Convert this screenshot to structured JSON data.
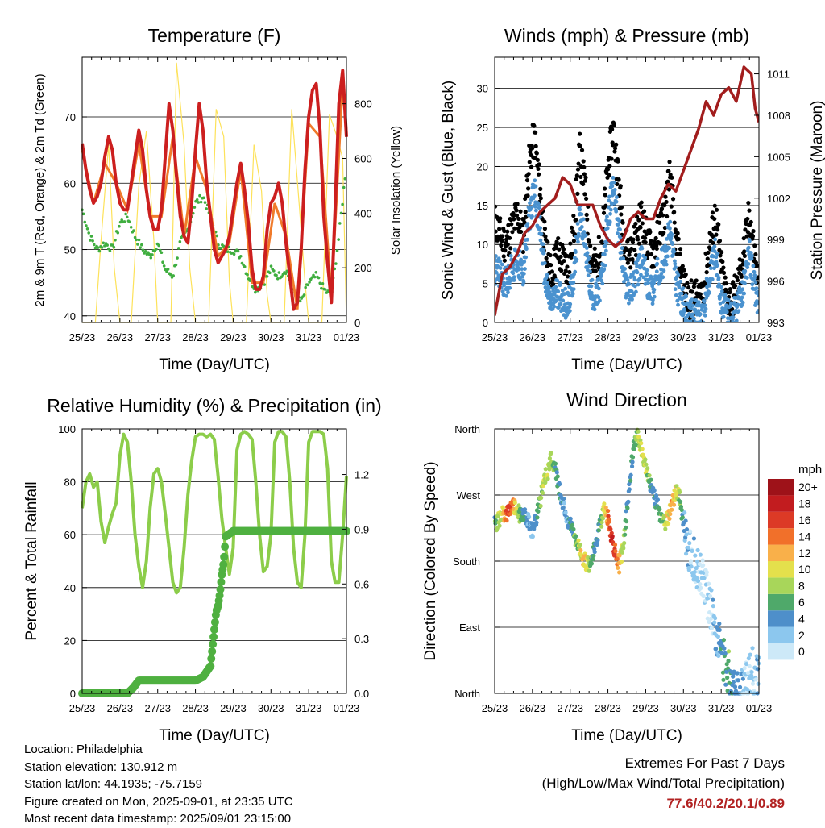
{
  "info": {
    "location": "Location: Philadelphia",
    "elevation": "Station elevation: 130.912 m",
    "latlon": "Station lat/lon: 44.1935; -75.7159",
    "created": "Figure created on Mon, 2025-09-01, at 23:35 UTC",
    "timestamp": "Most recent data timestamp: 2025/09/01 23:15:00"
  },
  "extremes": {
    "title": "Extremes For Past 7 Days",
    "subtitle": "(High/Low/Max Wind/Total Precipitation)",
    "values": "77.6/40.2/20.1/0.89"
  },
  "colors": {
    "temp2m": "#cc1f1f",
    "temp9m": "#f07a2a",
    "dewpoint": "#3fae3f",
    "insolation": "#fde25a",
    "wind": "#4a92cf",
    "gust": "#000000",
    "pressure": "#a21d1d",
    "rh": "#8ccd4a",
    "precip": "#4fb040"
  },
  "speed_scale": {
    "unit": "mph",
    "labels": [
      "0",
      "2",
      "4",
      "6",
      "8",
      "10",
      "12",
      "14",
      "16",
      "18",
      "20+"
    ],
    "colors": [
      "#cde9f8",
      "#8cc7ee",
      "#4e8fca",
      "#4fa96a",
      "#a8d65a",
      "#e4e04c",
      "#f9b04a",
      "#f1702a",
      "#dc3a26",
      "#c21c1f",
      "#9e1219"
    ]
  },
  "chart_data": [
    {
      "id": "temperature",
      "type": "line",
      "title": "Temperature (F)",
      "xlabel": "Time (Day/UTC)",
      "ylabel": "2m & 9m T (Red, Orange) & 2m Td (Green)",
      "y2label": "Solar Insolation (Yellow)",
      "xticks": [
        "25/23",
        "26/23",
        "27/23",
        "28/23",
        "29/23",
        "30/23",
        "31/23",
        "01/23"
      ],
      "xlim": [
        0,
        7
      ],
      "ylim": [
        39,
        79
      ],
      "yticks": [
        40,
        50,
        60,
        70
      ],
      "y2lim": [
        0,
        970
      ],
      "y2ticks": [
        0,
        200,
        400,
        600,
        800
      ],
      "series": [
        {
          "key": "temp2m",
          "x": [
            0,
            0.1,
            0.2,
            0.3,
            0.4,
            0.5,
            0.6,
            0.7,
            0.8,
            0.9,
            1.0,
            1.1,
            1.2,
            1.3,
            1.4,
            1.5,
            1.6,
            1.7,
            1.8,
            1.9,
            2.0,
            2.1,
            2.2,
            2.3,
            2.4,
            2.5,
            2.6,
            2.7,
            2.8,
            2.9,
            3.0,
            3.1,
            3.2,
            3.3,
            3.4,
            3.5,
            3.6,
            3.7,
            3.8,
            3.9,
            4.0,
            4.1,
            4.2,
            4.3,
            4.4,
            4.5,
            4.6,
            4.7,
            4.8,
            4.9,
            5.0,
            5.1,
            5.2,
            5.3,
            5.4,
            5.5,
            5.6,
            5.7,
            5.8,
            5.9,
            6.0,
            6.1,
            6.2,
            6.3,
            6.4,
            6.5,
            6.6,
            6.7,
            6.8,
            6.9,
            7.0
          ],
          "y": [
            66,
            62,
            59,
            57,
            58,
            60,
            64,
            67,
            65,
            60,
            57,
            56,
            56,
            60,
            64,
            68,
            65,
            59,
            55,
            53,
            53,
            56,
            64,
            72,
            68,
            61,
            55,
            52,
            51,
            57,
            65,
            72,
            68,
            60,
            55,
            50,
            48,
            49,
            50,
            52,
            56,
            60,
            63,
            59,
            54,
            47,
            44,
            44,
            46,
            53,
            57,
            58,
            60,
            57,
            51,
            46,
            41,
            42,
            50,
            62,
            70,
            74,
            75,
            68,
            55,
            48,
            42,
            56,
            72,
            77,
            67
          ]
        },
        {
          "key": "temp9m",
          "x": [
            0,
            0.3,
            0.6,
            0.9,
            1.2,
            1.5,
            1.8,
            2.1,
            2.4,
            2.7,
            3.0,
            3.3,
            3.6,
            3.9,
            4.2,
            4.5,
            4.8,
            5.1,
            5.4,
            5.7,
            6.0,
            6.3,
            6.6,
            6.9,
            7.0
          ],
          "y": [
            65,
            57,
            63,
            60,
            56,
            66,
            55,
            55,
            67,
            52,
            64,
            59,
            49,
            51,
            62,
            45,
            45,
            57,
            52,
            41,
            69,
            67,
            43,
            75,
            68
          ]
        },
        {
          "key": "dewpoint",
          "x": [
            0,
            0.2,
            0.4,
            0.6,
            0.8,
            1.0,
            1.2,
            1.4,
            1.6,
            1.8,
            2.0,
            2.2,
            2.4,
            2.6,
            2.8,
            3.0,
            3.2,
            3.4,
            3.6,
            3.8,
            4.0,
            4.2,
            4.4,
            4.6,
            4.8,
            5.0,
            5.2,
            5.4,
            5.6,
            5.8,
            6.0,
            6.2,
            6.4,
            6.6,
            6.8,
            7.0
          ],
          "y": [
            56,
            52,
            50,
            51,
            50,
            54,
            55,
            52,
            50,
            49,
            51,
            47,
            46,
            51,
            53,
            57,
            58,
            55,
            51,
            50,
            50,
            49,
            46,
            44,
            45,
            47,
            46,
            47,
            44,
            42,
            45,
            46,
            44,
            43,
            52,
            63
          ]
        },
        {
          "key": "insolation",
          "x": [
            0,
            0.35,
            0.5,
            0.7,
            0.85,
            1.0,
            1.3,
            1.5,
            1.7,
            1.9,
            2.0,
            2.35,
            2.5,
            2.7,
            2.85,
            3.0,
            3.35,
            3.55,
            3.75,
            3.9,
            4.0,
            4.35,
            4.55,
            4.75,
            4.9,
            5.0,
            5.35,
            5.55,
            5.75,
            5.9,
            6.0,
            6.35,
            6.55,
            6.75,
            6.9,
            7.0
          ],
          "y": [
            0,
            0,
            300,
            650,
            200,
            0,
            0,
            500,
            700,
            300,
            0,
            0,
            950,
            650,
            200,
            0,
            0,
            780,
            680,
            150,
            0,
            0,
            650,
            480,
            100,
            0,
            0,
            780,
            430,
            150,
            0,
            0,
            760,
            680,
            600,
            0
          ]
        }
      ]
    },
    {
      "id": "winds",
      "type": "scatter",
      "title": "Winds (mph) & Pressure (mb)",
      "xlabel": "Time (Day/UTC)",
      "ylabel": "Sonic Wind & Gust (Blue, Black)",
      "y2label": "Station Pressure (Maroon)",
      "xticks": [
        "25/23",
        "26/23",
        "27/23",
        "28/23",
        "29/23",
        "30/23",
        "31/23",
        "01/23"
      ],
      "xlim": [
        0,
        7
      ],
      "ylim": [
        0,
        34
      ],
      "yticks": [
        0,
        5,
        10,
        15,
        20,
        25,
        30
      ],
      "y2lim": [
        993,
        1012.2
      ],
      "y2ticks": [
        993,
        996,
        999,
        1002,
        1005,
        1008,
        1011
      ],
      "wind_x": [
        0,
        0.15,
        0.3,
        0.45,
        0.6,
        0.75,
        0.9,
        1.05,
        1.2,
        1.35,
        1.5,
        1.65,
        1.8,
        1.95,
        2.1,
        2.25,
        2.4,
        2.55,
        2.7,
        2.85,
        3.0,
        3.15,
        3.3,
        3.45,
        3.6,
        3.75,
        3.9,
        4.05,
        4.2,
        4.35,
        4.5,
        4.65,
        4.8,
        4.95,
        5.1,
        5.25,
        5.4,
        5.55,
        5.7,
        5.85,
        6.0,
        6.15,
        6.3,
        6.45,
        6.6,
        6.75,
        6.9,
        7.0
      ],
      "wind_y": [
        7,
        6,
        5,
        7,
        8,
        6,
        13,
        17,
        12,
        5,
        2,
        4,
        3,
        2,
        6,
        14,
        10,
        4,
        3,
        6,
        13,
        18,
        11,
        5,
        4,
        6,
        8,
        5,
        4,
        7,
        8,
        12,
        5,
        3,
        1,
        1,
        1,
        2,
        6,
        9,
        3,
        1,
        1,
        2,
        5,
        9,
        4,
        2
      ],
      "gust_y": [
        13,
        11,
        10,
        12,
        14,
        11,
        20,
        24,
        17,
        9,
        6,
        9,
        8,
        7,
        12,
        22,
        17,
        8,
        7,
        11,
        20,
        25,
        17,
        10,
        9,
        11,
        14,
        10,
        9,
        12,
        14,
        19,
        10,
        7,
        3,
        3,
        3,
        5,
        10,
        14,
        7,
        3,
        3,
        5,
        9,
        14,
        8,
        4
      ],
      "pressure_x": [
        0,
        0.2,
        0.4,
        0.6,
        0.8,
        1.0,
        1.2,
        1.4,
        1.6,
        1.8,
        2.0,
        2.2,
        2.4,
        2.6,
        2.8,
        3.0,
        3.2,
        3.4,
        3.6,
        3.8,
        4.0,
        4.2,
        4.4,
        4.6,
        4.8,
        5.0,
        5.2,
        5.4,
        5.6,
        5.8,
        6.0,
        6.2,
        6.4,
        6.6,
        6.8,
        6.9,
        7.0
      ],
      "pressure_y": [
        993.5,
        996.5,
        997,
        998,
        999.5,
        1000,
        1001,
        1001.5,
        1002,
        1003.5,
        1003,
        1001.5,
        1001.5,
        1001.5,
        1000,
        999,
        998.5,
        999,
        1000.5,
        1001,
        1000.5,
        1000.5,
        1002,
        1003,
        1002.5,
        1004,
        1005.5,
        1007,
        1009,
        1008,
        1009.5,
        1010,
        1009,
        1011.5,
        1011,
        1008.5,
        1007.5
      ]
    },
    {
      "id": "humidity",
      "type": "line",
      "title": "Relative Humidity (%) & Precipitation (in)",
      "xlabel": "Time (Day/UTC)",
      "ylabel": "Percent & Total Rainfall",
      "xticks": [
        "25/23",
        "26/23",
        "27/23",
        "28/23",
        "29/23",
        "30/23",
        "31/23",
        "01/23"
      ],
      "xlim": [
        0,
        7
      ],
      "ylim": [
        0,
        100
      ],
      "yticks": [
        0,
        20,
        40,
        60,
        80,
        100
      ],
      "y2lim": [
        0,
        1.45
      ],
      "y2ticks": [
        "0.0",
        "0.3",
        "0.6",
        "0.9",
        "1.2"
      ],
      "series": [
        {
          "key": "rh",
          "x": [
            0,
            0.1,
            0.2,
            0.3,
            0.4,
            0.5,
            0.6,
            0.7,
            0.8,
            0.9,
            1.0,
            1.1,
            1.2,
            1.3,
            1.4,
            1.5,
            1.6,
            1.7,
            1.8,
            1.9,
            2.0,
            2.1,
            2.2,
            2.3,
            2.4,
            2.5,
            2.6,
            2.7,
            2.8,
            2.9,
            3.0,
            3.1,
            3.2,
            3.3,
            3.4,
            3.5,
            3.6,
            3.7,
            3.8,
            3.9,
            4.0,
            4.1,
            4.2,
            4.3,
            4.4,
            4.5,
            4.6,
            4.7,
            4.8,
            4.9,
            5.0,
            5.1,
            5.2,
            5.3,
            5.4,
            5.5,
            5.6,
            5.7,
            5.8,
            5.9,
            6.0,
            6.1,
            6.2,
            6.3,
            6.4,
            6.5,
            6.6,
            6.7,
            6.8,
            6.9,
            7.0
          ],
          "y": [
            70,
            80,
            83,
            78,
            80,
            65,
            57,
            63,
            68,
            72,
            90,
            98,
            95,
            80,
            60,
            48,
            40,
            50,
            70,
            83,
            85,
            80,
            68,
            55,
            42,
            38,
            40,
            55,
            75,
            88,
            97,
            98,
            98,
            97,
            98,
            96,
            82,
            66,
            55,
            45,
            55,
            92,
            98,
            99,
            98,
            96,
            80,
            60,
            46,
            48,
            60,
            95,
            99,
            99,
            97,
            80,
            55,
            42,
            40,
            60,
            95,
            99,
            99,
            99,
            98,
            85,
            50,
            42,
            42,
            60,
            82
          ]
        },
        {
          "key": "precip",
          "x": [
            0,
            0.3,
            0.6,
            0.9,
            1.2,
            1.35,
            1.5,
            1.8,
            2.1,
            2.4,
            2.7,
            3.0,
            3.2,
            3.4,
            3.45,
            3.5,
            3.55,
            3.6,
            3.65,
            3.7,
            3.75,
            3.8,
            4.0,
            4.3,
            4.6,
            4.9,
            5.2,
            5.5,
            5.8,
            6.1,
            6.4,
            6.7,
            7.0
          ],
          "y": [
            0,
            0,
            0,
            0,
            0,
            0.03,
            0.07,
            0.07,
            0.07,
            0.07,
            0.07,
            0.07,
            0.09,
            0.15,
            0.25,
            0.35,
            0.45,
            0.48,
            0.55,
            0.65,
            0.72,
            0.86,
            0.89,
            0.89,
            0.89,
            0.89,
            0.89,
            0.89,
            0.89,
            0.89,
            0.89,
            0.89,
            0.89
          ]
        }
      ]
    },
    {
      "id": "direction",
      "type": "scatter",
      "title": "Wind Direction",
      "xlabel": "Time (Day/UTC)",
      "ylabel": "Direction (Colored By Speed)",
      "xticks": [
        "25/23",
        "26/23",
        "27/23",
        "28/23",
        "29/23",
        "30/23",
        "31/23",
        "01/23"
      ],
      "xlim": [
        0,
        7
      ],
      "ylim": [
        0,
        360
      ],
      "ytick_values": [
        0,
        90,
        180,
        270,
        360
      ],
      "yticks": [
        "North",
        "East",
        "South",
        "West",
        "North"
      ],
      "dir_x": [
        0,
        0.1,
        0.2,
        0.3,
        0.4,
        0.5,
        0.6,
        0.7,
        0.8,
        0.9,
        1.0,
        1.1,
        1.2,
        1.3,
        1.4,
        1.5,
        1.6,
        1.7,
        1.8,
        1.9,
        2.0,
        2.1,
        2.2,
        2.3,
        2.4,
        2.5,
        2.6,
        2.7,
        2.8,
        2.9,
        3.0,
        3.1,
        3.2,
        3.3,
        3.4,
        3.5,
        3.6,
        3.7,
        3.8,
        3.9,
        4.0,
        4.1,
        4.2,
        4.3,
        4.4,
        4.5,
        4.6,
        4.7,
        4.8,
        4.9,
        5.0,
        5.1,
        5.2,
        5.3,
        5.4,
        5.5,
        5.6,
        5.7,
        5.8,
        5.9,
        6.0,
        6.1,
        6.2,
        6.3,
        6.4,
        6.5,
        6.6,
        6.7,
        6.8,
        6.9,
        7.0
      ],
      "dir_y": [
        230,
        235,
        245,
        240,
        250,
        255,
        250,
        240,
        245,
        235,
        220,
        240,
        260,
        290,
        300,
        320,
        310,
        280,
        260,
        240,
        230,
        220,
        200,
        190,
        180,
        175,
        190,
        210,
        230,
        250,
        240,
        210,
        190,
        175,
        200,
        250,
        300,
        340,
        350,
        330,
        310,
        290,
        270,
        260,
        240,
        230,
        240,
        260,
        275,
        265,
        230,
        200,
        190,
        180,
        170,
        160,
        140,
        120,
        100,
        80,
        60,
        40,
        30,
        20,
        10,
        5,
        10,
        20,
        40,
        15,
        30
      ],
      "dir_speed": [
        6,
        8,
        10,
        14,
        16,
        12,
        8,
        6,
        5,
        4,
        3,
        5,
        7,
        8,
        9,
        8,
        6,
        5,
        4,
        3,
        4,
        6,
        8,
        10,
        12,
        8,
        5,
        4,
        6,
        10,
        14,
        17,
        15,
        12,
        8,
        5,
        4,
        6,
        8,
        10,
        9,
        6,
        5,
        4,
        6,
        8,
        10,
        12,
        11,
        7,
        4,
        3,
        2,
        2,
        1,
        1,
        1,
        1,
        2,
        3,
        4,
        5,
        6,
        5,
        4,
        3,
        2,
        1,
        1,
        2,
        3
      ]
    }
  ]
}
